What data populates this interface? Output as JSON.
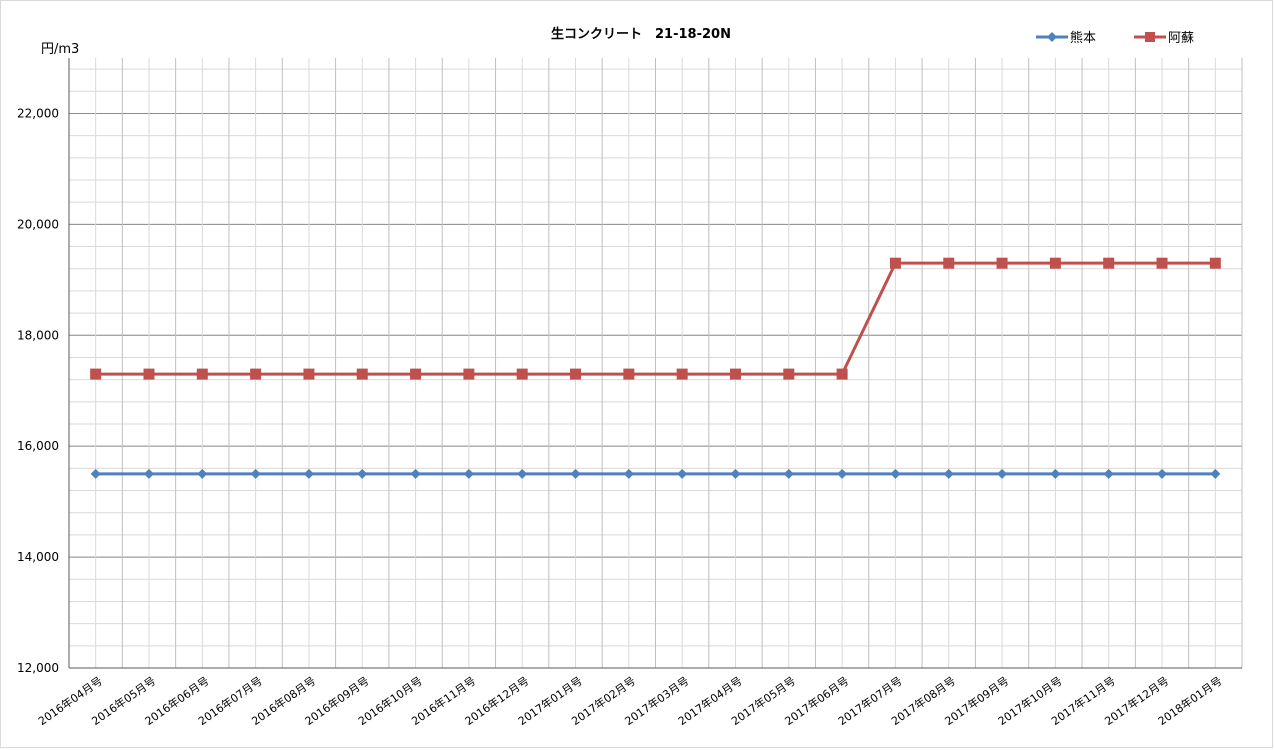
{
  "chart_data": {
    "type": "line",
    "title": "生コンクリート　21-18-20N",
    "ylabel": "円/m3",
    "xlabel": "",
    "ylim": [
      12000,
      23000
    ],
    "yticks": [
      12000,
      14000,
      16000,
      18000,
      20000,
      22000
    ],
    "ytick_labels": [
      "12,000",
      "14,000",
      "16,000",
      "18,000",
      "20,000",
      "22,000"
    ],
    "minor_y_step": 400,
    "grid": true,
    "legend_position": "top-right",
    "categories": [
      "2016年04月号",
      "2016年05月号",
      "2016年06月号",
      "2016年07月号",
      "2016年08月号",
      "2016年09月号",
      "2016年10月号",
      "2016年11月号",
      "2016年12月号",
      "2017年01月号",
      "2017年02月号",
      "2017年03月号",
      "2017年04月号",
      "2017年05月号",
      "2017年06月号",
      "2017年07月号",
      "2017年08月号",
      "2017年09月号",
      "2017年10月号",
      "2017年11月号",
      "2017年12月号",
      "2018年01月号"
    ],
    "series": [
      {
        "name": "熊本",
        "color": "#4f81bd",
        "marker": "diamond",
        "values": [
          15500,
          15500,
          15500,
          15500,
          15500,
          15500,
          15500,
          15500,
          15500,
          15500,
          15500,
          15500,
          15500,
          15500,
          15500,
          15500,
          15500,
          15500,
          15500,
          15500,
          15500,
          15500
        ]
      },
      {
        "name": "阿蘇",
        "color": "#c0504d",
        "marker": "square",
        "values": [
          17300,
          17300,
          17300,
          17300,
          17300,
          17300,
          17300,
          17300,
          17300,
          17300,
          17300,
          17300,
          17300,
          17300,
          17300,
          19300,
          19300,
          19300,
          19300,
          19300,
          19300,
          19300
        ]
      }
    ]
  }
}
